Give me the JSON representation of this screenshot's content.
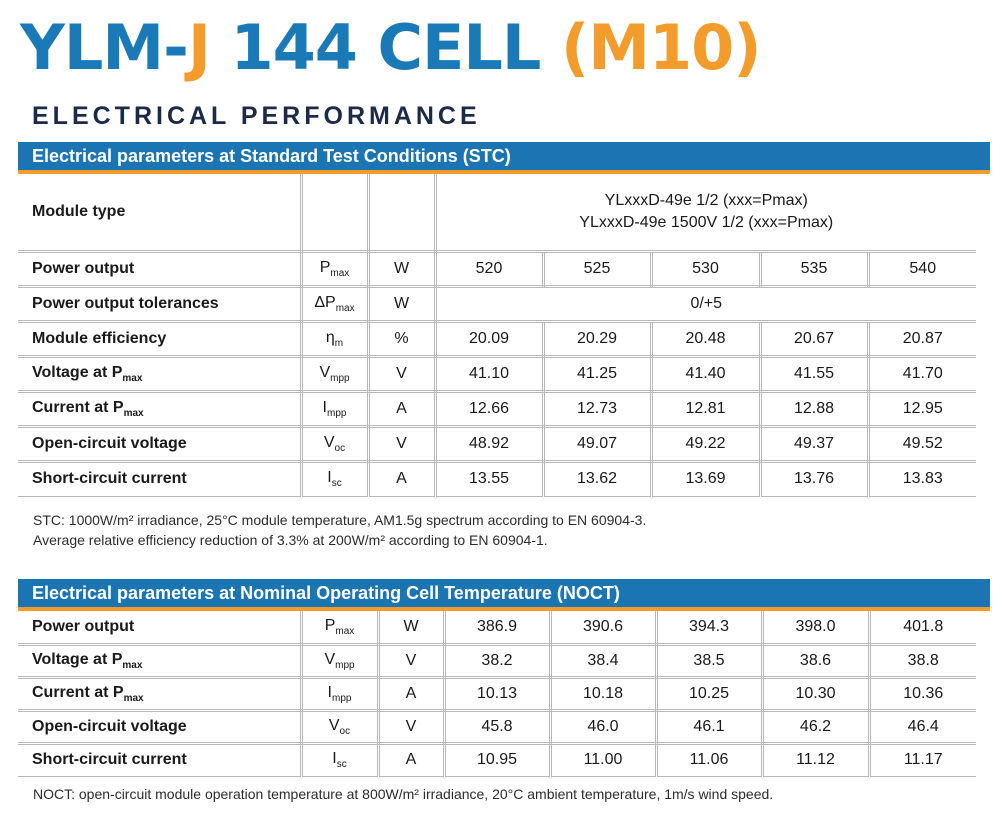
{
  "title": {
    "part1": "YLM-",
    "part2": "J",
    "part3": " 144 CELL ",
    "part4": "(M10)"
  },
  "subtitle": "ELECTRICAL PERFORMANCE",
  "stc": {
    "header": "Electrical parameters at Standard Test Conditions (STC)",
    "module_type": {
      "label": "Module type",
      "line1": "YLxxxD-49e 1/2 (xxx=Pmax)",
      "line2": "YLxxxD-49e 1500V 1/2 (xxx=Pmax)"
    },
    "rows": [
      {
        "label": "Power output",
        "sym": "P",
        "symsub": "max",
        "unit": "W",
        "values": [
          "520",
          "525",
          "530",
          "535",
          "540"
        ]
      },
      {
        "label": "Power output tolerances",
        "sym": "ΔP",
        "symsub": "max",
        "unit": "W",
        "span": "0/+5"
      },
      {
        "label": "Module efficiency",
        "sym": "η",
        "symsub": "m",
        "unit": "%",
        "values": [
          "20.09",
          "20.29",
          "20.48",
          "20.67",
          "20.87"
        ]
      },
      {
        "label": "Voltage at P",
        "labelsub": "max",
        "sym": "V",
        "symsub": "mpp",
        "unit": "V",
        "values": [
          "41.10",
          "41.25",
          "41.40",
          "41.55",
          "41.70"
        ]
      },
      {
        "label": "Current at P",
        "labelsub": "max",
        "sym": "I",
        "symsub": "mpp",
        "unit": "A",
        "values": [
          "12.66",
          "12.73",
          "12.81",
          "12.88",
          "12.95"
        ]
      },
      {
        "label": "Open-circuit voltage",
        "sym": "V",
        "symsub": "oc",
        "unit": "V",
        "values": [
          "48.92",
          "49.07",
          "49.22",
          "49.37",
          "49.52"
        ]
      },
      {
        "label": "Short-circuit current",
        "sym": "I",
        "symsub": "sc",
        "unit": "A",
        "values": [
          "13.55",
          "13.62",
          "13.69",
          "13.76",
          "13.83"
        ]
      }
    ],
    "note1": "STC: 1000W/m² irradiance, 25°C module temperature, AM1.5g spectrum according to EN 60904-3.",
    "note2": "Average relative efficiency reduction of 3.3% at 200W/m² according to EN 60904-1."
  },
  "noct": {
    "header": "Electrical parameters at Nominal Operating Cell Temperature (NOCT)",
    "rows": [
      {
        "label": "Power output",
        "sym": "P",
        "symsub": "max",
        "unit": "W",
        "values": [
          "386.9",
          "390.6",
          "394.3",
          "398.0",
          "401.8"
        ]
      },
      {
        "label": "Voltage at P",
        "labelsub": "max",
        "sym": "V",
        "symsub": "mpp",
        "unit": "V",
        "values": [
          "38.2",
          "38.4",
          "38.5",
          "38.6",
          "38.8"
        ]
      },
      {
        "label": "Current at P",
        "labelsub": "max",
        "sym": "I",
        "symsub": "mpp",
        "unit": "A",
        "values": [
          "10.13",
          "10.18",
          "10.25",
          "10.30",
          "10.36"
        ]
      },
      {
        "label": "Open-circuit voltage",
        "sym": "V",
        "symsub": "oc",
        "unit": "V",
        "values": [
          "45.8",
          "46.0",
          "46.1",
          "46.2",
          "46.4"
        ]
      },
      {
        "label": "Short-circuit current",
        "sym": "I",
        "symsub": "sc",
        "unit": "A",
        "values": [
          "10.95",
          "11.00",
          "11.06",
          "11.12",
          "11.17"
        ]
      }
    ],
    "note": "NOCT: open-circuit module operation temperature at 800W/m² irradiance, 20°C ambient temperature, 1m/s wind speed."
  },
  "colors": {
    "brand_blue": "#1a7ab8",
    "accent_orange": "#f39c2c",
    "header_blue": "#1b75b2",
    "subtitle_navy": "#1b2a47"
  }
}
